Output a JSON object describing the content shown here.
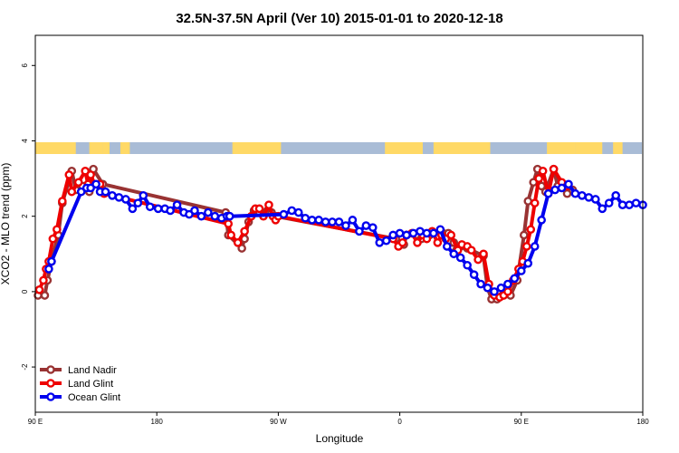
{
  "chart_data": {
    "type": "line",
    "title": "32.5N-37.5N April (Ver 10)   2015-01-01 to 2020-12-18",
    "xlabel": "Longitude",
    "ylabel": "XCO2 - MLO trend (ppm)",
    "xlim": [
      90,
      540
    ],
    "ylim": [
      -3.2,
      6.8
    ],
    "x_ticks": [
      {
        "value": 90,
        "label": "90 E"
      },
      {
        "value": 180,
        "label": "180"
      },
      {
        "value": 270,
        "label": "90 W"
      },
      {
        "value": 360,
        "label": "0"
      },
      {
        "value": 450,
        "label": "90 E"
      },
      {
        "value": 540,
        "label": "180"
      }
    ],
    "y_ticks": [
      {
        "value": -2,
        "label": "-2"
      },
      {
        "value": 0,
        "label": "0"
      },
      {
        "value": 2,
        "label": "2"
      },
      {
        "value": 4,
        "label": "4"
      },
      {
        "value": 6,
        "label": "6"
      }
    ],
    "legend": {
      "position": "bottom-left"
    },
    "colors": {
      "land": "#ffd966",
      "ocean": "#a9bcd6"
    },
    "land_segments": [
      [
        90,
        120
      ],
      [
        130,
        140
      ],
      [
        140,
        145
      ],
      [
        153,
        160
      ],
      [
        236,
        272
      ],
      [
        349,
        377
      ],
      [
        385,
        427
      ],
      [
        469,
        490
      ],
      [
        490,
        510
      ],
      [
        518,
        525
      ]
    ],
    "series": [
      {
        "name": "Land Nadir",
        "color": "#993333",
        "x": [
          92,
          97,
          99,
          102,
          107,
          110,
          117,
          120,
          125,
          130,
          133,
          140,
          231,
          233,
          243,
          245,
          248,
          252,
          256,
          262,
          265,
          268,
          357,
          363,
          365,
          372,
          376,
          382,
          392,
          396,
          400,
          402,
          405,
          410,
          422,
          425,
          428,
          432,
          436,
          442,
          447,
          452,
          455,
          459,
          462,
          465,
          468,
          474,
          477,
          482,
          484,
          488
        ],
        "values": [
          -0.1,
          -0.1,
          0.3,
          0.8,
          1.5,
          2.35,
          3.2,
          2.7,
          2.8,
          2.65,
          3.25,
          2.85,
          2.1,
          1.5,
          1.15,
          1.4,
          1.85,
          2.15,
          2.1,
          2.15,
          2.1,
          2.0,
          1.4,
          1.25,
          1.5,
          1.5,
          1.4,
          1.5,
          1.55,
          1.55,
          1.3,
          1.1,
          1.2,
          1.15,
          0.95,
          0.1,
          -0.2,
          -0.2,
          -0.1,
          -0.1,
          0.3,
          1.5,
          2.4,
          2.9,
          3.25,
          2.8,
          2.65,
          3.25,
          2.8,
          2.8,
          2.6,
          2.7
        ]
      },
      {
        "name": "Land Glint",
        "color": "#ee0000",
        "x": [
          93,
          96,
          98,
          100,
          103,
          106,
          110,
          115,
          117,
          122,
          127,
          129,
          131,
          134,
          138,
          141,
          233,
          235,
          240,
          245,
          250,
          253,
          256,
          259,
          263,
          266,
          268,
          270,
          355,
          359,
          362,
          365,
          369,
          373,
          377,
          380,
          384,
          388,
          391,
          394,
          398,
          403,
          406,
          410,
          413,
          418,
          422,
          426,
          430,
          434,
          437,
          440,
          444,
          448,
          451,
          454,
          457,
          460,
          463,
          466,
          470,
          474,
          480,
          484
        ],
        "values": [
          0.05,
          0.3,
          0.6,
          0.8,
          1.4,
          1.65,
          2.4,
          3.1,
          2.65,
          2.9,
          3.2,
          2.85,
          3.1,
          2.85,
          2.85,
          2.6,
          1.8,
          1.5,
          1.3,
          1.6,
          2.0,
          2.2,
          2.2,
          2.0,
          2.3,
          2.0,
          1.9,
          2.0,
          1.4,
          1.2,
          1.3,
          1.5,
          1.55,
          1.3,
          1.5,
          1.4,
          1.6,
          1.3,
          1.5,
          1.4,
          1.5,
          1.1,
          1.25,
          1.2,
          1.1,
          0.85,
          1.0,
          0.2,
          -0.1,
          -0.15,
          -0.1,
          0.0,
          0.3,
          0.6,
          0.8,
          1.2,
          1.65,
          2.35,
          3.0,
          3.2,
          2.6,
          3.25,
          2.9,
          2.8
        ]
      },
      {
        "name": "Ocean Glint",
        "color": "#0000ee",
        "x": [
          100,
          102,
          124,
          128,
          131,
          135,
          138,
          142,
          147,
          152,
          157,
          162,
          166,
          170,
          175,
          181,
          186,
          190,
          195,
          200,
          204,
          208,
          213,
          218,
          223,
          228,
          232,
          234,
          274,
          280,
          285,
          290,
          295,
          300,
          305,
          310,
          315,
          320,
          325,
          330,
          335,
          340,
          345,
          350,
          355,
          360,
          365,
          370,
          375,
          380,
          385,
          390,
          395,
          400,
          405,
          410,
          415,
          420,
          425,
          430,
          435,
          440,
          445,
          450,
          455,
          460,
          465,
          470,
          475,
          480,
          485,
          490,
          495,
          500,
          505,
          510,
          515,
          520,
          525,
          530,
          535,
          540
        ],
        "values": [
          0.6,
          0.8,
          2.65,
          2.75,
          2.75,
          2.85,
          2.65,
          2.65,
          2.55,
          2.5,
          2.45,
          2.2,
          2.35,
          2.55,
          2.25,
          2.2,
          2.2,
          2.15,
          2.3,
          2.1,
          2.05,
          2.15,
          2.0,
          2.1,
          2.0,
          1.95,
          2.0,
          2.0,
          2.05,
          2.15,
          2.1,
          1.95,
          1.9,
          1.9,
          1.85,
          1.85,
          1.85,
          1.75,
          1.9,
          1.6,
          1.75,
          1.7,
          1.3,
          1.35,
          1.5,
          1.55,
          1.5,
          1.55,
          1.6,
          1.55,
          1.55,
          1.65,
          1.2,
          1.0,
          0.9,
          0.7,
          0.45,
          0.2,
          0.1,
          0.0,
          0.1,
          0.2,
          0.35,
          0.55,
          0.75,
          1.2,
          1.9,
          2.6,
          2.7,
          2.75,
          2.85,
          2.6,
          2.55,
          2.5,
          2.45,
          2.2,
          2.35,
          2.55,
          2.3,
          2.3,
          2.35,
          2.3
        ]
      }
    ]
  }
}
